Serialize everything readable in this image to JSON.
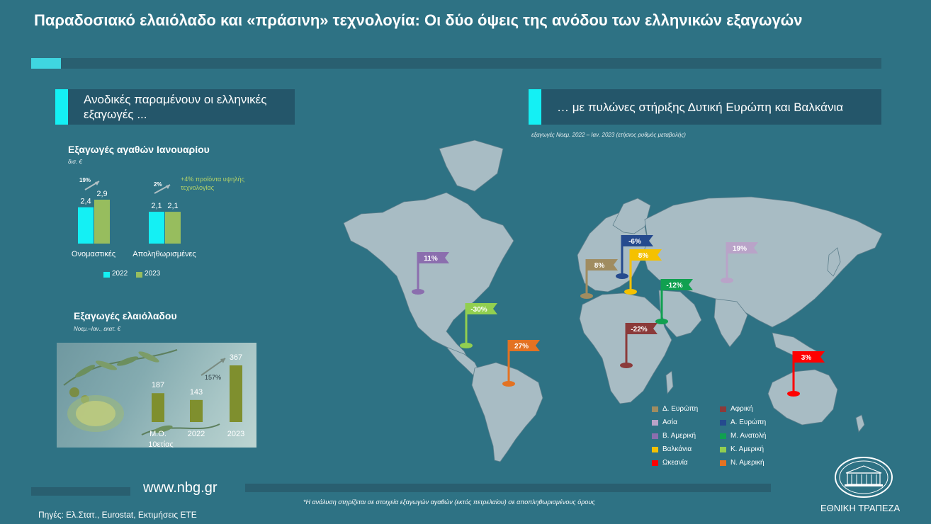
{
  "title": "Παραδοσιακό ελαιόλαδο και «πράσινη» τεχνολογία: Οι δύο όψεις της ανόδου των ελληνικών εξαγωγών",
  "left_panel": {
    "header": "Ανοδικές παραμένουν οι ελληνικές εξαγωγές ..."
  },
  "right_panel": {
    "header": "… με πυλώνες στήριξης Δυτική Ευρώπη και Βαλκάνια",
    "subtitle": "εξαγωγές Νοεμ. 2022 – Ιαν. 2023 (ετήσιος ρυθμός μεταβολής)"
  },
  "chart_data": [
    {
      "type": "bar",
      "title": "Εξαγωγές αγαθών Ιανουαρίου",
      "unit": "δισ. €",
      "categories": [
        "Ονομαστικές",
        "Αποληθωρισμένες"
      ],
      "series": [
        {
          "name": "2022",
          "values": [
            2.4,
            2.1
          ],
          "labels": [
            "2,4",
            "2,1"
          ],
          "color": "#14f0f4"
        },
        {
          "name": "2023",
          "values": [
            2.9,
            2.1
          ],
          "labels": [
            "2,9",
            "2,1"
          ],
          "color": "#97bd5e"
        }
      ],
      "annotations": [
        "19%",
        "2%",
        "+4% προϊόντα υψηλής τεχνολογίας"
      ],
      "ylim": [
        0,
        3.5
      ]
    },
    {
      "type": "bar",
      "title": "Εξαγωγές ελαιόλαδου",
      "unit": "Νοεμ.–Ιαν., εκατ. €",
      "categories": [
        "Μ.Ο. 10ετίας",
        "2022",
        "2023"
      ],
      "values": [
        187,
        143,
        367
      ],
      "color": "#7f8f2e",
      "annotations": [
        "157%"
      ],
      "ylim": [
        0,
        400
      ]
    },
    {
      "type": "map",
      "flags": [
        {
          "region": "Δ. Ευρώπη",
          "label": "8%",
          "value": 8,
          "color": "#a08c60"
        },
        {
          "region": "Α. Ευρώπη",
          "label": "-6%",
          "value": -6,
          "color": "#254a8e"
        },
        {
          "region": "Βαλκάνια",
          "label": "8%",
          "value": 8,
          "color": "#f5c100"
        },
        {
          "region": "Ασία",
          "label": "19%",
          "value": 19,
          "color": "#b9a3c8"
        },
        {
          "region": "Β. Αμερική",
          "label": "11%",
          "value": 11,
          "color": "#8b6eae"
        },
        {
          "region": "Κ. Αμερική",
          "label": "-30%",
          "value": -30,
          "color": "#92cf50"
        },
        {
          "region": "Ν. Αμερική",
          "label": "27%",
          "value": 27,
          "color": "#e37222"
        },
        {
          "region": "Μ. Ανατολή",
          "label": "-12%",
          "value": -12,
          "color": "#10a050"
        },
        {
          "region": "Αφρική",
          "label": "-22%",
          "value": -22,
          "color": "#8b3a3a"
        },
        {
          "region": "Ωκεανία",
          "label": "3%",
          "value": 3,
          "color": "#ff0000"
        }
      ],
      "legend": [
        {
          "label": "Δ. Ευρώπη",
          "color": "#a08c60"
        },
        {
          "label": "Αφρική",
          "color": "#8b3a3a"
        },
        {
          "label": "Ασία",
          "color": "#b9a3c8"
        },
        {
          "label": "Α. Ευρώπη",
          "color": "#254a8e"
        },
        {
          "label": "Β. Αμερική",
          "color": "#8b6eae"
        },
        {
          "label": "Μ. Ανατολή",
          "color": "#10a050"
        },
        {
          "label": "Βαλκάνια",
          "color": "#f5c100"
        },
        {
          "label": "Κ. Αμερική",
          "color": "#92cf50"
        },
        {
          "label": "Ωκεανία",
          "color": "#ff0000"
        },
        {
          "label": "Ν. Αμερική",
          "color": "#e37222"
        }
      ]
    }
  ],
  "footer": {
    "url": "www.nbg.gr",
    "sources": "Πηγές: Ελ.Στατ., Eurostat, Εκτιμήσεις ΕΤΕ",
    "footnote": "*Η ανάλυση στηρίζεται σε στοιχεία εξαγωγών αγαθών (εκτός πετρελαίου) σε αποπληθωρισμένους όρους",
    "bank_name": "ΕΘΝΙΚΗ ΤΡΑΠΕΖΑ",
    "logo_icon": "nbg-building-logo-icon"
  }
}
